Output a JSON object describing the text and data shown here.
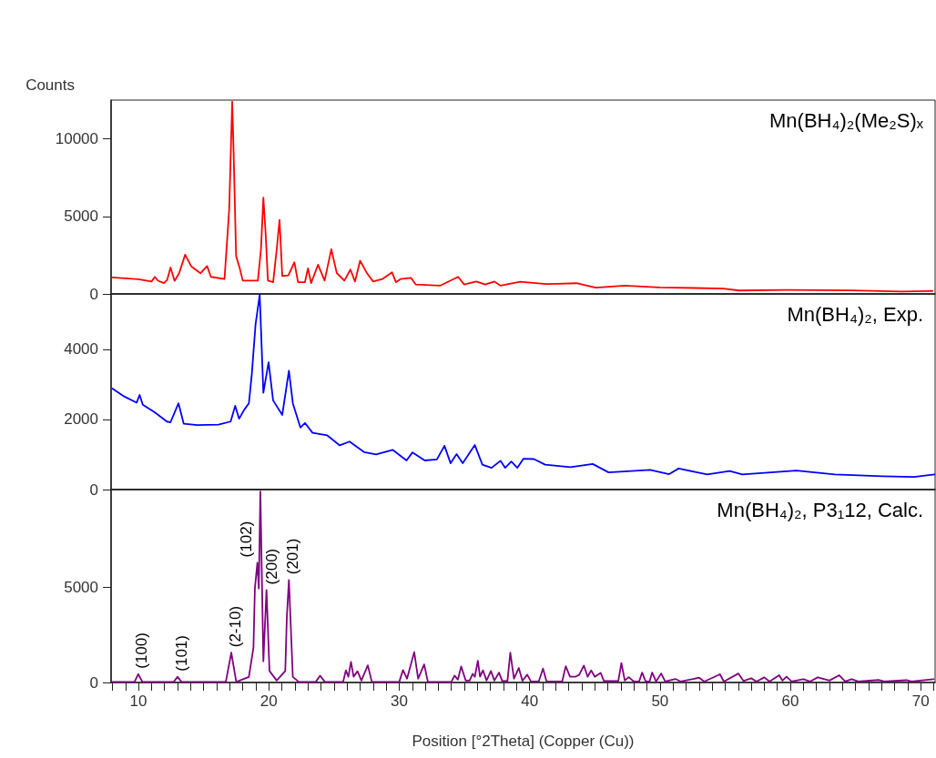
{
  "chart_data": [
    {
      "type": "line",
      "ylabel": "Counts",
      "xlim": [
        7.9,
        71.1
      ],
      "ylim": [
        0,
        12500
      ],
      "yticks": [
        0,
        5000,
        10000
      ],
      "tick_labels": "y",
      "legend": "top right",
      "series": [
        {
          "name": "Mn(BH₄)₂(Me₂S)ₓ",
          "color": "#ff0000",
          "x": [
            8.0,
            9.0,
            10.0,
            11.0,
            11.26,
            11.5,
            11.95,
            12.2,
            12.46,
            12.77,
            13.12,
            13.58,
            14.05,
            14.75,
            15.26,
            15.56,
            16.6,
            16.96,
            17.19,
            17.3,
            17.49,
            17.77,
            18.0,
            19.16,
            19.4,
            19.58,
            19.75,
            19.93,
            20.33,
            20.61,
            20.82,
            21.03,
            21.5,
            21.96,
            22.24,
            22.77,
            23.0,
            23.24,
            23.77,
            24.28,
            24.79,
            25.21,
            25.79,
            26.26,
            26.61,
            27.0,
            27.53,
            28.0,
            28.7,
            29.45,
            29.75,
            30.1,
            30.9,
            31.26,
            33.12,
            34.52,
            34.98,
            35.91,
            36.6,
            37.3,
            37.77,
            39.28,
            41.26,
            42.16,
            43.6,
            45.07,
            47.3,
            49.97,
            54.85,
            56.06,
            59.73,
            64.6,
            68.5,
            70.9
          ],
          "values": [
            1060,
            1000,
            950,
            800,
            1100,
            850,
            700,
            900,
            1700,
            840,
            1330,
            2530,
            1780,
            1330,
            1800,
            1100,
            960,
            5470,
            12400,
            9100,
            2430,
            1650,
            860,
            860,
            2920,
            6210,
            3950,
            860,
            760,
            2920,
            4780,
            1160,
            1190,
            2040,
            760,
            760,
            1650,
            700,
            1880,
            860,
            2880,
            1350,
            860,
            1570,
            800,
            2140,
            1330,
            800,
            960,
            1390,
            760,
            960,
            1040,
            610,
            530,
            1100,
            610,
            800,
            610,
            800,
            530,
            780,
            640,
            650,
            690,
            400,
            530,
            420,
            350,
            220,
            260,
            230,
            150,
            190
          ]
        }
      ]
    },
    {
      "type": "line",
      "xlim": [
        7.9,
        71.1
      ],
      "ylim": [
        0,
        5580
      ],
      "yticks": [
        0,
        2000,
        4000
      ],
      "tick_labels": "y",
      "legend": "top right",
      "series": [
        {
          "name": "Mn(BH₄)₂, Exp.",
          "color": "#0000ff",
          "x": [
            8.0,
            8.93,
            9.86,
            10.09,
            10.33,
            11.26,
            12.18,
            12.46,
            13.07,
            13.47,
            14.51,
            16.14,
            17.07,
            17.42,
            17.72,
            18.12,
            18.47,
            18.7,
            18.98,
            19.3,
            19.58,
            19.98,
            20.33,
            21.03,
            21.54,
            21.84,
            22.42,
            22.77,
            23.35,
            24.46,
            25.44,
            26.19,
            27.3,
            28.23,
            29.51,
            30.56,
            31.02,
            31.96,
            32.89,
            33.47,
            33.94,
            34.4,
            34.87,
            35.8,
            36.38,
            37.08,
            37.77,
            38.12,
            38.6,
            39.06,
            39.53,
            40.33,
            41.19,
            43.14,
            44.84,
            46.06,
            49.24,
            50.7,
            51.43,
            53.63,
            55.34,
            56.32,
            60.46,
            63.4,
            67.05,
            69.5,
            71.06
          ],
          "values": [
            2880,
            2650,
            2480,
            2700,
            2420,
            2200,
            1940,
            1920,
            2460,
            1880,
            1840,
            1850,
            1940,
            2390,
            2020,
            2280,
            2460,
            3320,
            4710,
            5560,
            2760,
            3630,
            2540,
            2130,
            3390,
            2460,
            1770,
            1900,
            1620,
            1550,
            1260,
            1370,
            1070,
            1000,
            1130,
            830,
            1060,
            830,
            860,
            1250,
            750,
            1010,
            750,
            1270,
            710,
            620,
            820,
            620,
            800,
            620,
            880,
            870,
            710,
            640,
            730,
            490,
            560,
            440,
            600,
            430,
            530,
            430,
            540,
            430,
            380,
            360,
            430
          ]
        }
      ]
    },
    {
      "type": "line",
      "xlabel": "Position [°2Theta] (Copper (Cu))",
      "xlim": [
        7.9,
        71.1
      ],
      "ylim": [
        0,
        10100
      ],
      "yticks": [
        0,
        5000
      ],
      "legend": "top right",
      "xticks": [
        {
          "value": 8,
          "label": null
        },
        {
          "value": 9,
          "label": null
        },
        10,
        {
          "value": 11,
          "label": null
        },
        {
          "value": 12,
          "label": null
        },
        {
          "value": 13,
          "label": null
        },
        {
          "value": 14,
          "label": null
        },
        {
          "value": 15,
          "label": null
        },
        {
          "value": 16,
          "label": null
        },
        {
          "value": 17,
          "label": null
        },
        {
          "value": 18,
          "label": null
        },
        {
          "value": 19,
          "label": null
        },
        20,
        {
          "value": 21,
          "label": null
        },
        {
          "value": 22,
          "label": null
        },
        {
          "value": 23,
          "label": null
        },
        {
          "value": 24,
          "label": null
        },
        {
          "value": 25,
          "label": null
        },
        {
          "value": 26,
          "label": null
        },
        {
          "value": 27,
          "label": null
        },
        {
          "value": 28,
          "label": null
        },
        {
          "value": 29,
          "label": null
        },
        30,
        {
          "value": 31,
          "label": null
        },
        {
          "value": 32,
          "label": null
        },
        {
          "value": 33,
          "label": null
        },
        {
          "value": 34,
          "label": null
        },
        {
          "value": 35,
          "label": null
        },
        {
          "value": 36,
          "label": null
        },
        {
          "value": 37,
          "label": null
        },
        {
          "value": 38,
          "label": null
        },
        {
          "value": 39,
          "label": null
        },
        40,
        {
          "value": 41,
          "label": null
        },
        {
          "value": 42,
          "label": null
        },
        {
          "value": 43,
          "label": null
        },
        {
          "value": 44,
          "label": null
        },
        {
          "value": 45,
          "label": null
        },
        {
          "value": 46,
          "label": null
        },
        {
          "value": 47,
          "label": null
        },
        {
          "value": 48,
          "label": null
        },
        {
          "value": 49,
          "label": null
        },
        50,
        {
          "value": 51,
          "label": null
        },
        {
          "value": 52,
          "label": null
        },
        {
          "value": 53,
          "label": null
        },
        {
          "value": 54,
          "label": null
        },
        {
          "value": 55,
          "label": null
        },
        {
          "value": 56,
          "label": null
        },
        {
          "value": 57,
          "label": null
        },
        {
          "value": 58,
          "label": null
        },
        {
          "value": 59,
          "label": null
        },
        60,
        {
          "value": 61,
          "label": null
        },
        {
          "value": 62,
          "label": null
        },
        {
          "value": 63,
          "label": null
        },
        {
          "value": 64,
          "label": null
        },
        {
          "value": 65,
          "label": null
        },
        {
          "value": 66,
          "label": null
        },
        {
          "value": 67,
          "label": null
        },
        {
          "value": 68,
          "label": null
        },
        {
          "value": 69,
          "label": null
        },
        70,
        {
          "value": 71,
          "label": null
        }
      ],
      "annotations": [
        {
          "text": "(100)",
          "x": 9.98,
          "y": 440
        },
        {
          "text": "(101)",
          "x": 13.0,
          "y": 300
        },
        {
          "text": "(2-10)",
          "x": 17.12,
          "y": 1560
        },
        {
          "text": "(102)",
          "x": 19.12,
          "y": 6270
        },
        {
          "text": "(200)",
          "x": 19.82,
          "y": 4840
        },
        {
          "text": "(201)",
          "x": 21.54,
          "y": 5370
        }
      ],
      "series": [
        {
          "name": "Mn(BH₄)₂, P3₁12, Calc.",
          "color": "#800080",
          "x": [
            8.0,
            9.7,
            9.98,
            10.3,
            12.7,
            13.0,
            13.3,
            16.7,
            17.12,
            17.5,
            18.47,
            18.82,
            18.93,
            19.12,
            19.23,
            19.35,
            19.58,
            19.82,
            20.05,
            20.6,
            21.26,
            21.38,
            21.54,
            21.84,
            22.3,
            23.6,
            23.93,
            24.3,
            25.7,
            25.91,
            26.1,
            26.3,
            26.5,
            26.8,
            27.1,
            27.59,
            27.9,
            30.0,
            30.29,
            30.6,
            31.15,
            31.45,
            31.91,
            32.2,
            34.0,
            34.24,
            34.5,
            34.75,
            35.1,
            35.4,
            35.63,
            35.8,
            36.03,
            36.2,
            36.42,
            36.7,
            37.03,
            37.3,
            37.65,
            37.9,
            38.3,
            38.52,
            38.8,
            39.17,
            39.45,
            39.82,
            40.1,
            40.7,
            41.03,
            41.3,
            42.5,
            42.77,
            43.1,
            43.5,
            43.8,
            44.16,
            44.45,
            44.72,
            45.0,
            45.45,
            45.7,
            46.8,
            47.04,
            47.3,
            47.6,
            48.0,
            48.4,
            48.63,
            48.9,
            49.2,
            49.4,
            49.7,
            50.09,
            50.4,
            51.2,
            51.6,
            53.0,
            53.4,
            54.6,
            54.9,
            56.02,
            56.4,
            57.0,
            57.4,
            58.0,
            58.4,
            59.14,
            59.4,
            59.7,
            60.1,
            61.0,
            61.5,
            62.1,
            63.0,
            63.75,
            64.2,
            64.7,
            65.2,
            66.8,
            67.2,
            68.9,
            69.3,
            71.0
          ],
          "values": [
            30,
            30,
            440,
            30,
            30,
            300,
            30,
            30,
            1560,
            30,
            290,
            1830,
            4920,
            6270,
            4920,
            10000,
            1110,
            4840,
            600,
            100,
            600,
            3420,
            5370,
            290,
            30,
            30,
            360,
            30,
            30,
            640,
            300,
            1080,
            300,
            590,
            100,
            900,
            30,
            30,
            650,
            200,
            1590,
            200,
            950,
            30,
            30,
            360,
            150,
            840,
            100,
            100,
            450,
            300,
            1140,
            300,
            640,
            100,
            600,
            100,
            520,
            80,
            80,
            1560,
            200,
            760,
            80,
            410,
            50,
            50,
            730,
            50,
            50,
            850,
            300,
            300,
            400,
            890,
            300,
            630,
            300,
            500,
            80,
            80,
            1020,
            100,
            280,
            50,
            50,
            520,
            50,
            50,
            520,
            50,
            470,
            50,
            180,
            50,
            250,
            50,
            430,
            50,
            470,
            80,
            220,
            50,
            270,
            50,
            380,
            100,
            300,
            50,
            170,
            50,
            270,
            100,
            380,
            50,
            170,
            50,
            130,
            50,
            120,
            50,
            170
          ]
        }
      ]
    }
  ]
}
